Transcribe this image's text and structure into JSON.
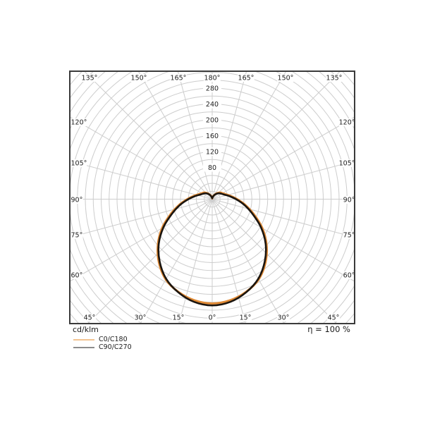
{
  "chart_data": {
    "type": "polar_photometric",
    "description": "Luminaire polar luminous intensity distribution diagram",
    "unit_label": "cd/klm",
    "efficiency_label": "η = 100 %",
    "radial_ticks": [
      80,
      120,
      160,
      200,
      240,
      280
    ],
    "radial_grid_step": 20,
    "radial_grid_max": 480,
    "angle_grid_step_deg": 15,
    "angle_labels": {
      "top": [
        "135°",
        "150°",
        "165°",
        "180°",
        "165°",
        "150°",
        "135°"
      ],
      "bottom": [
        "45°",
        "30°",
        "15°",
        "0°",
        "15°",
        "30°",
        "45°"
      ],
      "left": [
        "120°",
        "105°",
        "90°",
        "75°",
        "60°"
      ],
      "right": [
        "120°",
        "105°",
        "90°",
        "75°",
        "60°"
      ]
    },
    "series": [
      {
        "name": "C0/C180",
        "color": "#e08a35",
        "legend_color": "#f2c391",
        "gamma_deg": [
          0,
          10,
          20,
          30,
          40,
          50,
          60,
          70,
          80,
          90,
          100,
          110,
          120,
          130,
          140,
          150,
          160,
          170,
          175,
          180
        ],
        "cd_per_klm": [
          263,
          259,
          249,
          234,
          209,
          179,
          146,
          112,
          85,
          63,
          47,
          36,
          30,
          26,
          20,
          14,
          9,
          5,
          3.5,
          2
        ]
      },
      {
        "name": "C90/C270",
        "color": "#1b150f",
        "legend_color": "#8c8c8c",
        "gamma_deg": [
          0,
          10,
          20,
          30,
          40,
          50,
          60,
          70,
          80,
          90,
          100,
          110,
          120,
          130,
          140,
          150,
          160,
          170,
          175,
          180
        ],
        "cd_per_klm": [
          268,
          263,
          250,
          232,
          206,
          176,
          142,
          108,
          82,
          60,
          44,
          33,
          27,
          23,
          18,
          13,
          8,
          4,
          3,
          2
        ]
      }
    ],
    "grid_color": "#cdcdcd",
    "frame_color": "#3b3b3b",
    "label_color": "#1c1c1c"
  }
}
